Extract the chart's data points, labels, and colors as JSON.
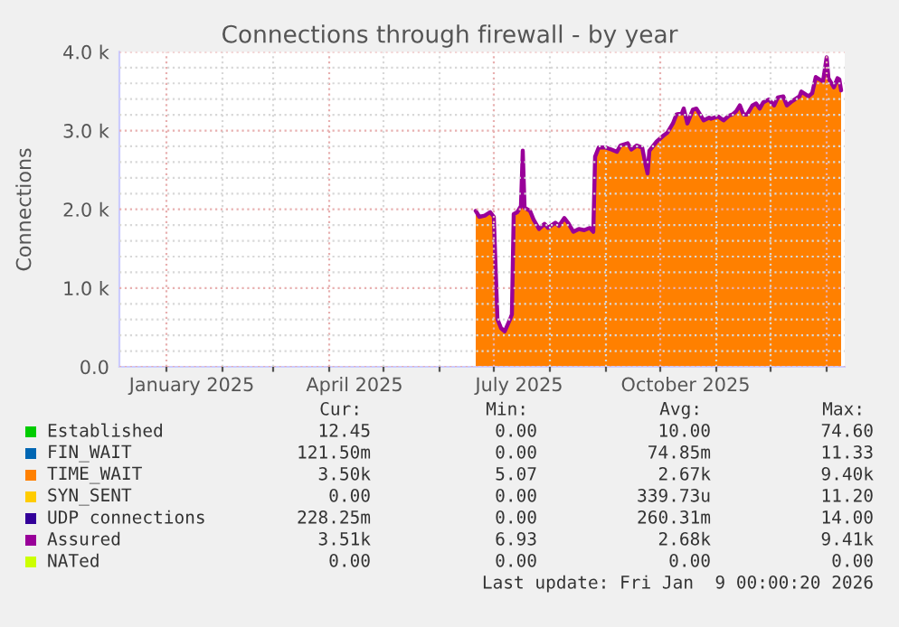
{
  "chart_data": {
    "type": "area",
    "title": "Connections through firewall - by year",
    "ylabel": "Connections",
    "x": [
      "2025-06-21",
      "2025-06-23",
      "2025-06-26",
      "2025-06-29",
      "2025-07-01",
      "2025-07-03",
      "2025-07-05",
      "2025-07-07",
      "2025-07-10",
      "2025-07-11",
      "2025-07-12",
      "2025-07-14",
      "2025-07-16",
      "2025-07-17",
      "2025-07-18",
      "2025-07-21",
      "2025-07-23",
      "2025-07-26",
      "2025-07-29",
      "2025-07-31",
      "2025-08-04",
      "2025-08-06",
      "2025-08-09",
      "2025-08-11",
      "2025-08-14",
      "2025-08-17",
      "2025-08-20",
      "2025-08-23",
      "2025-08-25",
      "2025-08-26",
      "2025-08-28",
      "2025-09-01",
      "2025-09-04",
      "2025-09-07",
      "2025-09-09",
      "2025-09-13",
      "2025-09-15",
      "2025-09-18",
      "2025-09-21",
      "2025-09-23",
      "2025-09-24",
      "2025-09-25",
      "2025-09-29",
      "2025-10-03",
      "2025-10-05",
      "2025-10-08",
      "2025-10-10",
      "2025-10-13",
      "2025-10-14",
      "2025-10-16",
      "2025-10-18",
      "2025-10-19",
      "2025-10-21",
      "2025-10-23",
      "2025-10-25",
      "2025-10-28",
      "2025-10-29",
      "2025-11-02",
      "2025-11-05",
      "2025-11-08",
      "2025-11-10",
      "2025-11-12",
      "2025-11-14",
      "2025-11-16",
      "2025-11-18",
      "2025-11-21",
      "2025-11-23",
      "2025-11-25",
      "2025-11-27",
      "2025-11-30",
      "2025-12-03",
      "2025-12-05",
      "2025-12-08",
      "2025-12-10",
      "2025-12-13",
      "2025-12-17",
      "2025-12-18",
      "2025-12-22",
      "2025-12-24",
      "2025-12-26",
      "2025-12-28",
      "2025-12-30",
      "2026-01-01",
      "2026-01-02",
      "2026-01-05",
      "2026-01-07",
      "2026-01-08",
      "2026-01-09"
    ],
    "series": [
      {
        "name": "Established",
        "color": "#00cc00",
        "type": "line",
        "values": [
          null,
          null,
          null,
          null,
          null,
          null,
          null,
          null,
          null,
          null,
          null,
          null,
          null,
          null,
          null,
          null,
          null,
          null,
          null,
          null,
          null,
          null,
          null,
          null,
          null,
          null,
          null,
          null,
          null,
          null,
          null,
          null,
          null,
          null,
          null,
          null,
          null,
          null,
          null,
          null,
          null,
          null,
          null,
          null,
          null,
          null,
          null,
          null,
          null,
          null,
          null,
          null,
          null,
          null,
          null,
          null,
          null,
          null,
          null,
          null,
          null,
          null,
          null,
          null,
          null,
          null,
          null,
          null,
          null,
          null,
          null,
          null,
          null,
          null,
          null,
          null,
          null,
          null,
          null,
          null,
          null,
          null,
          null,
          null,
          null,
          null,
          null,
          null
        ]
      },
      {
        "name": "FIN_WAIT",
        "color": "#0066b3",
        "type": "line",
        "values": [
          null,
          null,
          null,
          null,
          null,
          null,
          null,
          null,
          null,
          null,
          null,
          null,
          null,
          null,
          null,
          null,
          null,
          null,
          null,
          null,
          null,
          null,
          null,
          null,
          null,
          null,
          null,
          null,
          null,
          null,
          null,
          null,
          null,
          null,
          null,
          null,
          null,
          null,
          null,
          null,
          null,
          null,
          null,
          null,
          null,
          null,
          null,
          null,
          null,
          null,
          null,
          null,
          null,
          null,
          null,
          null,
          null,
          null,
          null,
          null,
          null,
          null,
          null,
          null,
          null,
          null,
          null,
          null,
          null,
          null,
          null,
          null,
          null,
          null,
          null,
          null,
          null,
          null,
          null,
          null,
          null,
          null,
          null,
          null,
          null,
          null,
          null,
          null
        ]
      },
      {
        "name": "TIME_WAIT",
        "color": "#ff8000",
        "values": [
          1980,
          1905,
          1920,
          1965,
          1905,
          605,
          490,
          450,
          605,
          665,
          1940,
          1965,
          2040,
          2745,
          2020,
          1980,
          1870,
          1750,
          1815,
          1765,
          1830,
          1790,
          1890,
          1830,
          1715,
          1750,
          1735,
          1765,
          1715,
          2670,
          2785,
          2785,
          2760,
          2730,
          2810,
          2840,
          2760,
          2810,
          2785,
          2555,
          2455,
          2745,
          2860,
          2940,
          2975,
          3090,
          3205,
          3220,
          3280,
          3090,
          3205,
          3265,
          3280,
          3205,
          3130,
          3165,
          3150,
          3180,
          3130,
          3190,
          3205,
          3245,
          3320,
          3205,
          3205,
          3320,
          3345,
          3280,
          3360,
          3395,
          3320,
          3420,
          3435,
          3320,
          3375,
          3435,
          3495,
          3435,
          3475,
          3680,
          3650,
          3625,
          3930,
          3665,
          3550,
          3665,
          3650,
          3510
        ]
      },
      {
        "name": "SYN_SENT",
        "color": "#ffcc00",
        "type": "line",
        "values": [
          null,
          null,
          null,
          null,
          null,
          null,
          null,
          null,
          null,
          null,
          null,
          null,
          null,
          null,
          null,
          null,
          null,
          null,
          null,
          null,
          null,
          null,
          null,
          null,
          null,
          null,
          null,
          null,
          null,
          null,
          null,
          null,
          null,
          null,
          null,
          null,
          null,
          null,
          null,
          null,
          null,
          null,
          null,
          null,
          null,
          null,
          null,
          null,
          null,
          null,
          null,
          null,
          null,
          null,
          null,
          null,
          null,
          null,
          null,
          null,
          null,
          null,
          null,
          null,
          null,
          null,
          null,
          null,
          null,
          null,
          null,
          null,
          null,
          null,
          null,
          null,
          null,
          null,
          null,
          null,
          null,
          null,
          null,
          null,
          null,
          null,
          null,
          null
        ]
      },
      {
        "name": "UDP connections",
        "color": "#330099",
        "type": "line",
        "values": [
          null,
          null,
          null,
          null,
          null,
          null,
          null,
          null,
          null,
          null,
          null,
          null,
          null,
          null,
          null,
          null,
          null,
          null,
          null,
          null,
          null,
          null,
          null,
          null,
          null,
          null,
          null,
          null,
          null,
          null,
          null,
          null,
          null,
          null,
          null,
          null,
          null,
          null,
          null,
          null,
          null,
          null,
          null,
          null,
          null,
          null,
          null,
          null,
          null,
          null,
          null,
          null,
          null,
          null,
          null,
          null,
          null,
          null,
          null,
          null,
          null,
          null,
          null,
          null,
          null,
          null,
          null,
          null,
          null,
          null,
          null,
          null,
          null,
          null,
          null,
          null,
          null,
          null,
          null,
          null,
          null,
          null,
          null,
          null,
          null,
          null,
          null,
          null
        ]
      },
      {
        "name": "Assured",
        "color": "#990099",
        "type": "line",
        "values": [
          1980,
          1905,
          1920,
          1965,
          1905,
          605,
          490,
          450,
          605,
          665,
          1940,
          1965,
          2040,
          2745,
          2020,
          1980,
          1870,
          1750,
          1815,
          1765,
          1830,
          1790,
          1890,
          1830,
          1715,
          1750,
          1735,
          1765,
          1715,
          2670,
          2785,
          2785,
          2760,
          2730,
          2810,
          2840,
          2760,
          2810,
          2785,
          2555,
          2455,
          2745,
          2860,
          2940,
          2975,
          3090,
          3205,
          3220,
          3280,
          3090,
          3205,
          3265,
          3280,
          3205,
          3130,
          3165,
          3150,
          3180,
          3130,
          3190,
          3205,
          3245,
          3320,
          3205,
          3205,
          3320,
          3345,
          3280,
          3360,
          3395,
          3320,
          3420,
          3435,
          3320,
          3375,
          3435,
          3495,
          3435,
          3475,
          3680,
          3650,
          3625,
          3930,
          3665,
          3550,
          3665,
          3650,
          3510
        ]
      },
      {
        "name": "NATed",
        "color": "#ccff00",
        "type": "line",
        "values": [
          null,
          null,
          null,
          null,
          null,
          null,
          null,
          null,
          null,
          null,
          null,
          null,
          null,
          null,
          null,
          null,
          null,
          null,
          null,
          null,
          null,
          null,
          null,
          null,
          null,
          null,
          null,
          null,
          null,
          null,
          null,
          null,
          null,
          null,
          null,
          null,
          null,
          null,
          null,
          null,
          null,
          null,
          null,
          null,
          null,
          null,
          null,
          null,
          null,
          null,
          null,
          null,
          null,
          null,
          null,
          null,
          null,
          null,
          null,
          null,
          null,
          null,
          null,
          null,
          null,
          null,
          null,
          null,
          null,
          null,
          null,
          null,
          null,
          null,
          null,
          null,
          null,
          null,
          null,
          null,
          null,
          null,
          null,
          null,
          null,
          null,
          null,
          null
        ]
      }
    ],
    "xlim": [
      "2024-12-06",
      "2026-01-11"
    ],
    "xticks": [
      {
        "value": "2025-01-01",
        "label": null
      },
      {
        "value": "2025-01-15",
        "label": "January 2025"
      },
      {
        "value": "2025-02-01",
        "label": null
      },
      {
        "value": "2025-03-01",
        "label": null
      },
      {
        "value": "2025-04-01",
        "label": null
      },
      {
        "value": "2025-04-15",
        "label": "April 2025"
      },
      {
        "value": "2025-05-01",
        "label": null
      },
      {
        "value": "2025-06-01",
        "label": null
      },
      {
        "value": "2025-07-01",
        "label": null
      },
      {
        "value": "2025-07-15",
        "label": "July 2025"
      },
      {
        "value": "2025-08-01",
        "label": null
      },
      {
        "value": "2025-09-01",
        "label": null
      },
      {
        "value": "2025-10-01",
        "label": null
      },
      {
        "value": "2025-10-15",
        "label": "October 2025"
      },
      {
        "value": "2025-11-01",
        "label": null
      },
      {
        "value": "2025-12-01",
        "label": null
      },
      {
        "value": "2026-01-01",
        "label": null
      }
    ],
    "ylim": [
      0,
      4000
    ],
    "yticks": [
      {
        "value": 0,
        "label": "0.0"
      },
      {
        "value": 200,
        "label": null
      },
      {
        "value": 400,
        "label": null
      },
      {
        "value": 600,
        "label": null
      },
      {
        "value": 800,
        "label": null
      },
      {
        "value": 1000,
        "label": "1.0 k"
      },
      {
        "value": 1200,
        "label": null
      },
      {
        "value": 1400,
        "label": null
      },
      {
        "value": 1600,
        "label": null
      },
      {
        "value": 1800,
        "label": null
      },
      {
        "value": 2000,
        "label": "2.0 k"
      },
      {
        "value": 2200,
        "label": null
      },
      {
        "value": 2400,
        "label": null
      },
      {
        "value": 2600,
        "label": null
      },
      {
        "value": 2800,
        "label": null
      },
      {
        "value": 3000,
        "label": "3.0 k"
      },
      {
        "value": 3200,
        "label": null
      },
      {
        "value": 3400,
        "label": null
      },
      {
        "value": 3600,
        "label": null
      },
      {
        "value": 3800,
        "label": null
      },
      {
        "value": 4000,
        "label": "4.0 k"
      }
    ],
    "grid": true,
    "legend": "bottom",
    "annotations": [
      "Cur:",
      "Min:",
      "Avg:",
      "Max:",
      "12.45",
      "0.00",
      "10.00",
      "74.60",
      "121.50m",
      "0.00",
      "74.85m",
      "11.33",
      "3.50k",
      "5.07",
      "2.67k",
      "9.40k",
      "0.00",
      "0.00",
      "339.73u",
      "11.20",
      "228.25m",
      "0.00",
      "260.31m",
      "14.00",
      "3.51k",
      "6.93",
      "2.68k",
      "9.41k",
      "0.00",
      "0.00",
      "0.00",
      "0.00",
      "Last update: Fri Jan  9 00:00:20 2026"
    ]
  }
}
